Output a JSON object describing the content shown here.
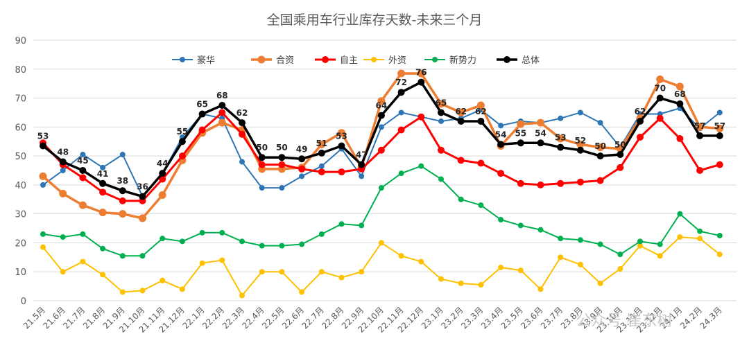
{
  "chart_data": {
    "type": "line",
    "title": "全国乘用车行业库存天数-未来三个月",
    "xlabel": "",
    "ylabel": "",
    "ylim": [
      0,
      90
    ],
    "yticks": [
      0,
      10,
      20,
      30,
      40,
      50,
      60,
      70,
      80,
      90
    ],
    "grid": true,
    "legend_position": "top",
    "categories": [
      "21.5月",
      "21.6月",
      "21.7月",
      "21.8月",
      "21.9月",
      "21.10月",
      "21.11月",
      "21.12月",
      "22.1月",
      "22.2月",
      "22.3月",
      "22.4月",
      "22.5月",
      "22.6月",
      "22.7月",
      "22.8月",
      "22.9月",
      "22.10月",
      "22.11月",
      "22.12月",
      "23.1月",
      "23.2月",
      "23.3月",
      "23.4月",
      "23.5月",
      "23.6月",
      "23.7月",
      "23.8月",
      "23.9月",
      "23.10月",
      "23.11月",
      "23.12月",
      "24.1月",
      "24.2月",
      "24.3月"
    ],
    "series": [
      {
        "name": "豪华",
        "color": "#2E75B6",
        "width": 2,
        "marker": 4,
        "values": [
          40,
          45,
          50.5,
          46,
          50.5,
          36,
          44,
          56.5,
          64.5,
          63,
          48,
          39,
          39,
          43,
          46.5,
          52.5,
          43,
          60,
          65,
          63.5,
          62,
          63,
          66,
          60.5,
          62,
          61.5,
          63,
          65,
          61.5,
          53,
          64.5,
          64.5,
          66.5,
          59.5,
          65
        ]
      },
      {
        "name": "合资",
        "color": "#ED7D31",
        "width": 3.5,
        "marker": 5.5,
        "values": [
          43,
          37,
          33,
          30.5,
          30,
          28.5,
          36.5,
          48.5,
          58,
          61.5,
          59,
          45.5,
          45.5,
          46,
          54,
          58,
          46,
          69,
          78.5,
          78.5,
          68,
          65,
          67.5,
          53.5,
          61,
          61.5,
          56,
          54,
          53,
          52.5,
          63,
          76.5,
          74,
          60,
          59.5
        ]
      },
      {
        "name": "自主",
        "color": "#FF0000",
        "width": 3,
        "marker": 5,
        "values": [
          54.5,
          47,
          42.5,
          37.5,
          34.5,
          34.5,
          42,
          50,
          59,
          65,
          57.5,
          47,
          47,
          45.5,
          44.5,
          44.5,
          45.5,
          52,
          59,
          63.5,
          52,
          48.5,
          47.5,
          44,
          40.5,
          40,
          40.5,
          41,
          41.5,
          46,
          56.5,
          63,
          56,
          45,
          47
        ]
      },
      {
        "name": "外资",
        "color": "#FFC000",
        "width": 2,
        "marker": 4,
        "values": [
          18.5,
          10,
          13.5,
          9,
          3,
          3.5,
          7,
          4,
          13,
          14,
          1.8,
          10,
          10,
          3,
          10,
          8,
          10,
          20,
          15.5,
          13.5,
          7.5,
          6,
          5.5,
          11.5,
          10.5,
          4,
          15,
          12.5,
          6,
          11,
          19,
          15.5,
          22,
          21.5,
          16
        ]
      },
      {
        "name": "新势力",
        "color": "#00B050",
        "width": 2,
        "marker": 4,
        "values": [
          23,
          22,
          23,
          18,
          15.5,
          15.5,
          21.5,
          20.5,
          23.5,
          23.5,
          20.5,
          19,
          19,
          19.5,
          23,
          26.5,
          26,
          39,
          44,
          46.5,
          42,
          35,
          33,
          28,
          26,
          24.5,
          21.5,
          21,
          19.5,
          16,
          20.5,
          19.5,
          30,
          24,
          22.5
        ]
      },
      {
        "name": "总体",
        "color": "#000000",
        "width": 3.5,
        "marker": 5,
        "values": [
          53.5,
          48,
          45,
          40.5,
          38,
          36,
          44,
          55,
          64.5,
          67.5,
          61.5,
          49.5,
          49.5,
          49,
          51,
          53.5,
          47,
          64,
          72,
          75.5,
          65,
          62,
          62,
          54,
          54.5,
          54.5,
          53,
          52,
          50,
          50.5,
          62,
          70,
          68,
          57,
          57
        ]
      }
    ],
    "data_labels": {
      "series": "总体",
      "labels": [
        "53",
        "48",
        "45",
        "41",
        "38",
        "36",
        "44",
        "55",
        "65",
        "68",
        "62",
        "50",
        "50",
        "49",
        "51",
        "53",
        "47",
        "64",
        "72",
        "76",
        "65",
        "62",
        "62",
        "54",
        "55",
        "54",
        "53",
        "52",
        "50",
        "50",
        "62",
        "70",
        "68",
        "57",
        "57"
      ]
    },
    "watermark": "公众号 崔东树"
  }
}
